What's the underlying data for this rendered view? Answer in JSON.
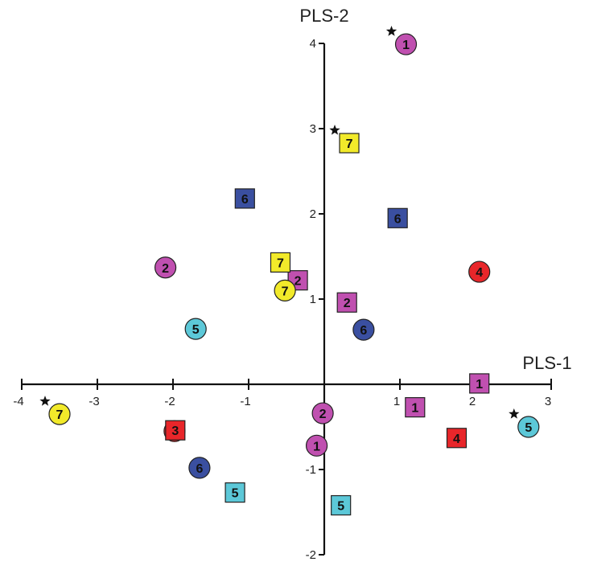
{
  "chart_data": {
    "type": "scatter",
    "title": "",
    "xlabel": "PLS-1",
    "ylabel": "PLS-2",
    "xlim": [
      -4,
      3
    ],
    "ylim": [
      -2,
      4
    ],
    "x_ticks": [
      "-4",
      "-3",
      "-2",
      "-1",
      "0",
      "1",
      "2",
      "3"
    ],
    "y_ticks": [
      "-2",
      "-1",
      "0",
      "1",
      "2",
      "3",
      "4"
    ],
    "grid": false,
    "colors": {
      "1": "#c050b0",
      "2": "#c050b0",
      "3": "#e8262a",
      "4": "#e8262a",
      "5": "#5cc8d8",
      "6": "#3a4fa0",
      "7": "#f2ea2a"
    },
    "points": [
      {
        "x": 1.08,
        "y": 3.99,
        "label": "1",
        "shape": "circle",
        "star": true
      },
      {
        "x": -0.1,
        "y": -0.72,
        "label": "1",
        "shape": "circle",
        "star": false
      },
      {
        "x": 2.05,
        "y": 0.01,
        "label": "1",
        "shape": "square",
        "star": false
      },
      {
        "x": 1.2,
        "y": -0.27,
        "label": "1",
        "shape": "square",
        "star": false
      },
      {
        "x": -2.1,
        "y": 1.37,
        "label": "2",
        "shape": "circle",
        "star": false
      },
      {
        "x": -0.02,
        "y": -0.34,
        "label": "2",
        "shape": "circle",
        "star": false
      },
      {
        "x": -0.35,
        "y": 1.22,
        "label": "2",
        "shape": "square",
        "star": false
      },
      {
        "x": 0.3,
        "y": 0.96,
        "label": "2",
        "shape": "square",
        "star": false
      },
      {
        "x": -1.98,
        "y": -0.55,
        "label": "3",
        "shape": "circle",
        "star": false
      },
      {
        "x": -1.97,
        "y": -0.54,
        "label": "3",
        "shape": "square",
        "star": false
      },
      {
        "x": 2.05,
        "y": 1.32,
        "label": "4",
        "shape": "circle",
        "star": false
      },
      {
        "x": 1.75,
        "y": -0.63,
        "label": "4",
        "shape": "square",
        "star": false
      },
      {
        "x": -1.7,
        "y": 0.65,
        "label": "5",
        "shape": "circle",
        "star": false
      },
      {
        "x": 2.7,
        "y": -0.5,
        "label": "5",
        "shape": "circle",
        "star": true
      },
      {
        "x": -1.18,
        "y": -1.27,
        "label": "5",
        "shape": "square",
        "star": false
      },
      {
        "x": 0.22,
        "y": -1.42,
        "label": "5",
        "shape": "square",
        "star": false
      },
      {
        "x": 0.52,
        "y": 0.64,
        "label": "6",
        "shape": "circle",
        "star": false
      },
      {
        "x": -1.65,
        "y": -0.98,
        "label": "6",
        "shape": "circle",
        "star": false
      },
      {
        "x": -1.05,
        "y": 2.18,
        "label": "6",
        "shape": "square",
        "star": false
      },
      {
        "x": 0.97,
        "y": 1.95,
        "label": "6",
        "shape": "square",
        "star": false
      },
      {
        "x": -3.5,
        "y": -0.35,
        "label": "7",
        "shape": "circle",
        "star": true
      },
      {
        "x": -0.52,
        "y": 1.1,
        "label": "7",
        "shape": "circle",
        "star": false
      },
      {
        "x": 0.33,
        "y": 2.83,
        "label": "7",
        "shape": "square",
        "star": true
      },
      {
        "x": -0.58,
        "y": 1.43,
        "label": "7",
        "shape": "square",
        "star": false
      }
    ]
  }
}
